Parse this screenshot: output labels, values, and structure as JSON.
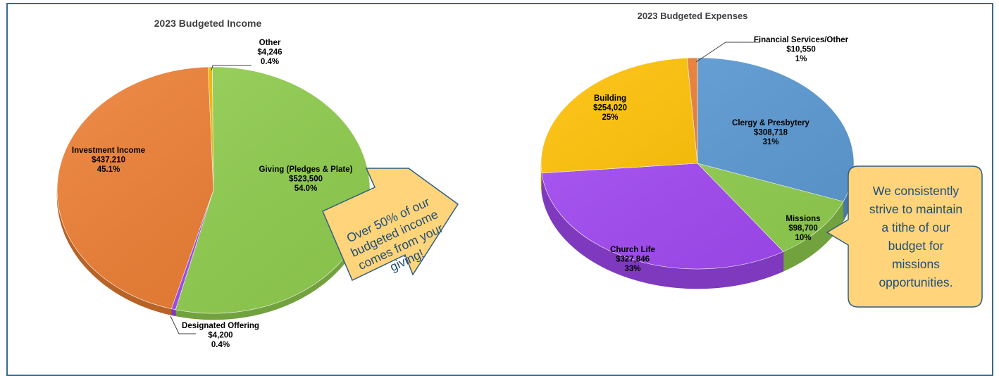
{
  "chart_data": [
    {
      "type": "pie",
      "title": "2023 Budgeted Income",
      "slices": [
        {
          "label": "Other",
          "value": 4246,
          "value_text": "$4,246",
          "percent_text": "0.4%",
          "color": "#f5b800"
        },
        {
          "label": "Giving (Pledges & Plate)",
          "value": 523500,
          "value_text": "$523,500",
          "percent_text": "54.0%",
          "color": "#92d050"
        },
        {
          "label": "Designated Offering",
          "value": 4200,
          "value_text": "$4,200",
          "percent_text": "0.4%",
          "color": "#a349f5"
        },
        {
          "label": "Investment Income",
          "value": 437210,
          "value_text": "$437,210",
          "percent_text": "45.1%",
          "color": "#ed7d31"
        }
      ]
    },
    {
      "type": "pie",
      "title": "2023 Budgeted Expenses",
      "slices": [
        {
          "label": "Clergy & Presbytery",
          "value": 308718,
          "value_text": "$308,718",
          "percent_text": "31%",
          "color": "#5b9bd5"
        },
        {
          "label": "Missions",
          "value": 98700,
          "value_text": "$98,700",
          "percent_text": "10%",
          "color": "#92d050"
        },
        {
          "label": "Church Life",
          "value": 327846,
          "value_text": "$327,846",
          "percent_text": "33%",
          "color": "#a349f5"
        },
        {
          "label": "Building",
          "value": 254020,
          "value_text": "$254,020",
          "percent_text": "25%",
          "color": "#ffc000"
        },
        {
          "label": "Financial Services/Other",
          "value": 10550,
          "value_text": "$10,550",
          "percent_text": "1%",
          "color": "#ed7d31"
        }
      ]
    }
  ],
  "callouts": {
    "income_arrow": [
      "Over 50% of our",
      "budgeted income",
      "comes from your",
      "giving!"
    ],
    "missions_box": [
      "We consistently",
      "strive to maintain",
      "a tithe of our",
      "budget for",
      "missions",
      "opportunities."
    ]
  },
  "colors": {
    "callout_fill": "#ffd47a",
    "callout_stroke": "#2f5f80",
    "callout_text": "#1f4e79",
    "frame": "#3b6a87"
  }
}
